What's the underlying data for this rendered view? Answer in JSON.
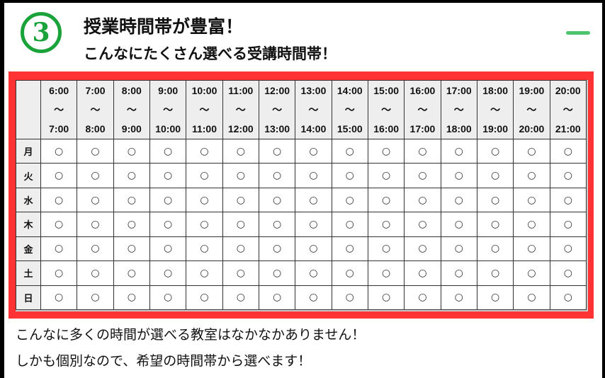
{
  "header": {
    "number": "3",
    "title": "授業時間帯が豊富！",
    "subtitle": "こんなにたくさん選べる受講時間帯！",
    "toggle_icon": "minus-icon",
    "accent": "#1aa33a",
    "frame_color": "#ff3333"
  },
  "table": {
    "slots": [
      [
        "6:00",
        "7:00"
      ],
      [
        "7:00",
        "8:00"
      ],
      [
        "8:00",
        "9:00"
      ],
      [
        "9:00",
        "10:00"
      ],
      [
        "10:00",
        "11:00"
      ],
      [
        "11:00",
        "12:00"
      ],
      [
        "12:00",
        "13:00"
      ],
      [
        "13:00",
        "14:00"
      ],
      [
        "14:00",
        "15:00"
      ],
      [
        "15:00",
        "16:00"
      ],
      [
        "16:00",
        "17:00"
      ],
      [
        "17:00",
        "18:00"
      ],
      [
        "18:00",
        "19:00"
      ],
      [
        "19:00",
        "20:00"
      ],
      [
        "20:00",
        "21:00"
      ]
    ],
    "separator": "～",
    "days": [
      "月",
      "火",
      "水",
      "木",
      "金",
      "土",
      "日"
    ],
    "mark": "○"
  },
  "body": {
    "line1": "こんなに多くの時間が選べる教室はなかなかありません！",
    "line2": "しかも個別なので、希望の時間帯から選べます！"
  }
}
